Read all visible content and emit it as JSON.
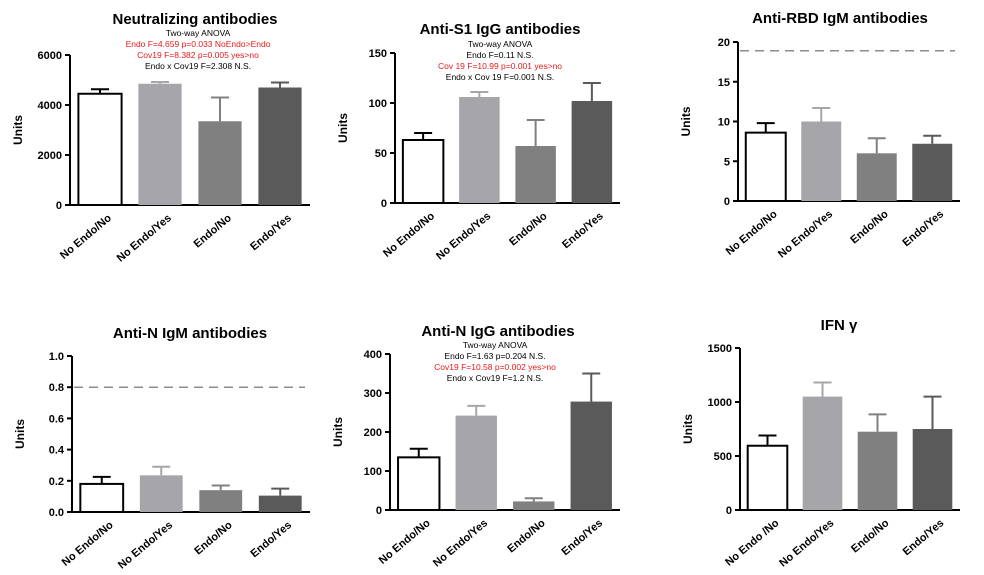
{
  "colors": {
    "bar_fills": [
      "#ffffff",
      "#a6a6aa",
      "#808080",
      "#5a5a5a"
    ],
    "axis": "#000000",
    "annotation_black": "#000000",
    "annotation_red": "#e8191a",
    "threshold_line": "#8c8c8c"
  },
  "chart_data": [
    {
      "type": "bar",
      "title": "Neutralizing antibodies",
      "ylabel": "Units",
      "categories": [
        "No Endo/No",
        "No Endo/Yes",
        "Endo/No",
        "Endo/Yes"
      ],
      "values": [
        4450,
        4850,
        3350,
        4700
      ],
      "errors": [
        180,
        70,
        950,
        200
      ],
      "ylim": [
        0,
        6000
      ],
      "yticks": [
        0,
        2000,
        4000,
        6000
      ],
      "threshold": null,
      "annotations": [
        {
          "text": "Two-way ANOVA",
          "color": "black"
        },
        {
          "text": "Endo   F=4.659 p=0.033 NoEndo>Endo",
          "color": "red"
        },
        {
          "text": "Cov19 F=8.382 p=0.005      yes>no",
          "color": "red"
        },
        {
          "text": "Endo x Cov19 F=2.308 N.S.",
          "color": "black"
        }
      ]
    },
    {
      "type": "bar",
      "title": "Anti-S1 IgG antibodies",
      "ylabel": "Units",
      "categories": [
        "No Endo/No",
        "No Endo/Yes",
        "Endo/No",
        "Endo/Yes"
      ],
      "values": [
        63,
        106,
        57,
        102
      ],
      "errors": [
        7,
        5,
        26,
        18
      ],
      "ylim": [
        0,
        150
      ],
      "yticks": [
        0,
        50,
        100,
        150
      ],
      "threshold": null,
      "annotations": [
        {
          "text": "Two-way ANOVA",
          "color": "black"
        },
        {
          "text": "Endo   F=0.11 N.S.",
          "color": "black"
        },
        {
          "text": "Cov 19 F=10.99 p=0.001 yes>no",
          "color": "red"
        },
        {
          "text": "Endo  x Cov 19 F=0.001 N.S.",
          "color": "black"
        }
      ]
    },
    {
      "type": "bar",
      "title": "Anti-RBD IgM antibodies",
      "ylabel": "Units",
      "categories": [
        "No Endo/No",
        "No Endo/Yes",
        "Endo/No",
        "Endo/Yes"
      ],
      "values": [
        8.6,
        10.0,
        6.0,
        7.2
      ],
      "errors": [
        1.2,
        1.7,
        1.9,
        1.0
      ],
      "ylim": [
        0,
        20
      ],
      "yticks": [
        0,
        5,
        10,
        15,
        20
      ],
      "threshold": 18.9,
      "annotations": []
    },
    {
      "type": "bar",
      "title": "Anti-N IgM antibodies",
      "ylabel": "Units",
      "categories": [
        "No Endo/No",
        "No Endo/Yes",
        "Endo/No",
        "Endo/Yes"
      ],
      "values": [
        0.18,
        0.235,
        0.14,
        0.105
      ],
      "errors": [
        0.045,
        0.055,
        0.03,
        0.045
      ],
      "ylim": [
        0,
        1.0
      ],
      "yticks": [
        0,
        0.2,
        0.4,
        0.6,
        0.8,
        1.0
      ],
      "ytick_labels": [
        "0.0",
        "0.2",
        "0.4",
        "0.6",
        "0.8",
        "1.0"
      ],
      "threshold": 0.8,
      "annotations": []
    },
    {
      "type": "bar",
      "title": "Anti-N IgG antibodies",
      "ylabel": "Units",
      "categories": [
        "No Endo/No",
        "No Endo/Yes",
        "Endo/No",
        "Endo/Yes"
      ],
      "values": [
        135,
        242,
        22,
        278
      ],
      "errors": [
        22,
        25,
        8,
        72
      ],
      "ylim": [
        0,
        400
      ],
      "yticks": [
        0,
        100,
        200,
        300,
        400
      ],
      "threshold": null,
      "annotations": [
        {
          "text": "Two-way ANOVA",
          "color": "black"
        },
        {
          "text": "Endo   F=1.63 p=0.204 N.S.",
          "color": "black"
        },
        {
          "text": "Cov19 F=10.58 p=0.002  yes>no",
          "color": "red"
        },
        {
          "text": "Endo x Cov19 F=1.2 N.S.",
          "color": "black"
        }
      ]
    },
    {
      "type": "bar",
      "title": "IFN γ",
      "ylabel": "Units",
      "categories": [
        "No Endo /No",
        "No Endo/Yes",
        "Endo/No",
        "Endo/Yes"
      ],
      "values": [
        595,
        1050,
        725,
        750
      ],
      "errors": [
        95,
        130,
        160,
        300
      ],
      "ylim": [
        0,
        1500
      ],
      "yticks": [
        0,
        500,
        1000,
        1500
      ],
      "threshold": null,
      "annotations": []
    }
  ]
}
